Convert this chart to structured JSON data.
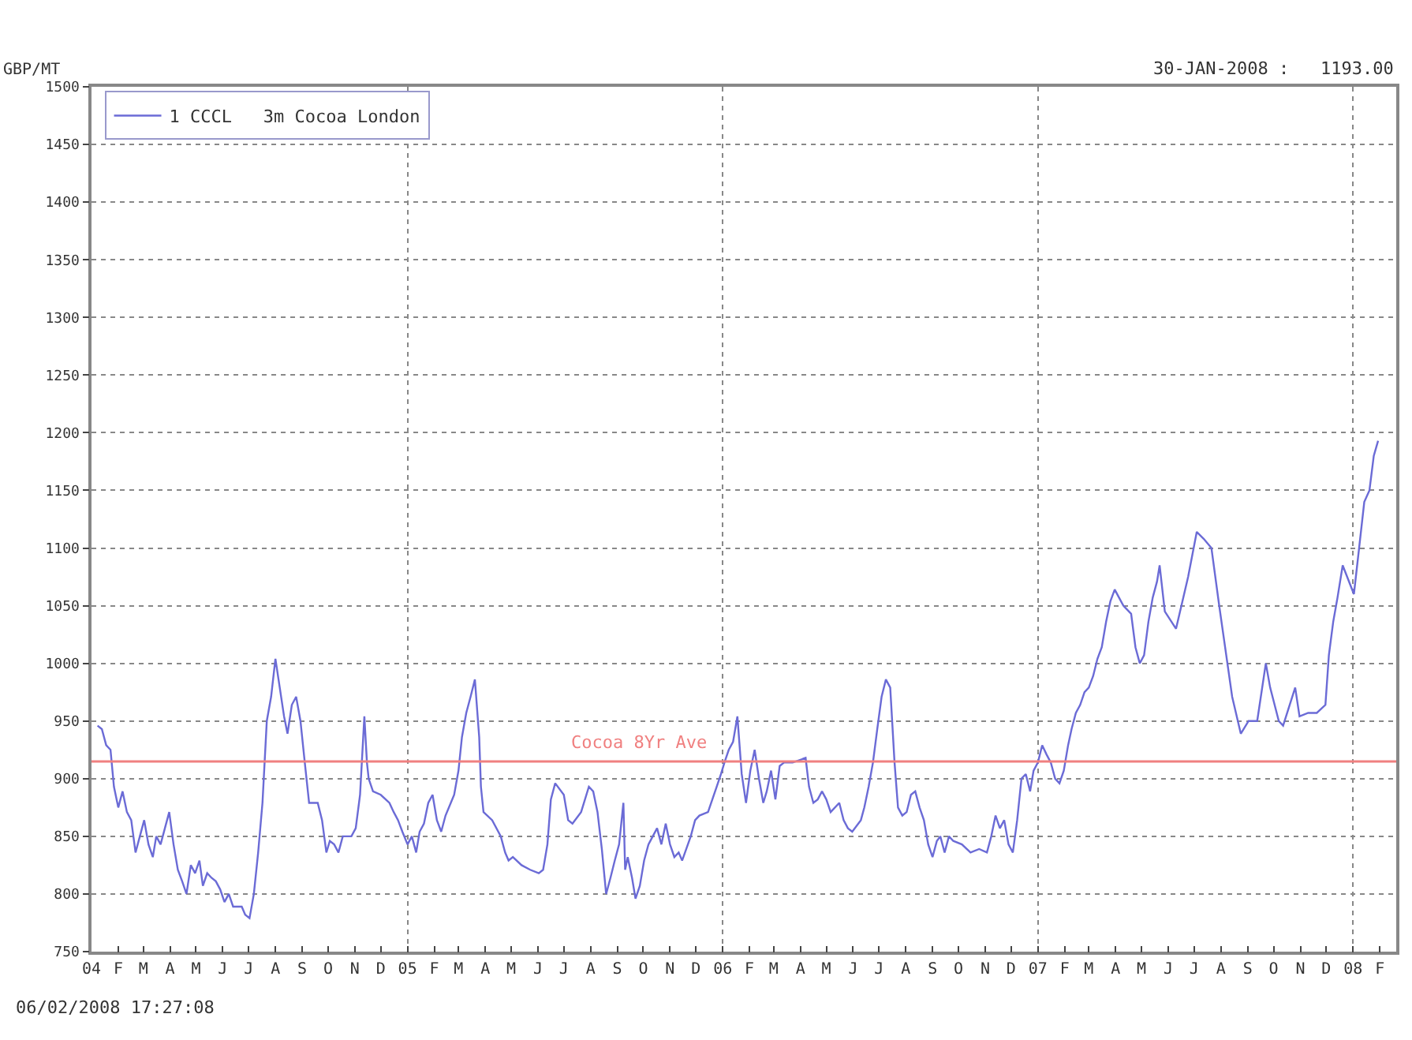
{
  "chart_data": {
    "type": "line",
    "ylabel": "GBP/MT",
    "annotations": [
      "30-JAN-2008 :   1193.00",
      "06/02/2008 17:27:08"
    ],
    "series": [
      {
        "name": "1 CCCL   3m Cocoa London",
        "color": "#6b6bd6",
        "x": [
          "2004-01-08",
          "2004-01-13",
          "2004-01-18",
          "2004-01-23",
          "2004-01-27",
          "2004-02-01",
          "2004-02-06",
          "2004-02-11",
          "2004-02-16",
          "2004-02-21",
          "2004-02-26",
          "2004-03-02",
          "2004-03-07",
          "2004-03-12",
          "2004-03-16",
          "2004-03-21",
          "2004-03-26",
          "2004-03-31",
          "2004-04-05",
          "2004-04-10",
          "2004-04-15",
          "2004-04-20",
          "2004-04-25",
          "2004-04-30",
          "2004-05-05",
          "2004-05-09",
          "2004-05-14",
          "2004-05-19",
          "2004-05-24",
          "2004-05-29",
          "2004-06-03",
          "2004-06-08",
          "2004-06-13",
          "2004-06-23",
          "2004-06-27",
          "2004-07-02",
          "2004-07-07",
          "2004-07-12",
          "2004-07-17",
          "2004-07-22",
          "2004-07-27",
          "2004-08-01",
          "2004-08-06",
          "2004-08-11",
          "2004-08-15",
          "2004-08-20",
          "2004-08-25",
          "2004-08-30",
          "2004-09-04",
          "2004-09-09",
          "2004-09-19",
          "2004-09-24",
          "2004-09-29",
          "2004-10-03",
          "2004-10-08",
          "2004-10-13",
          "2004-10-18",
          "2004-10-28",
          "2004-11-02",
          "2004-11-07",
          "2004-11-12",
          "2004-11-15",
          "2004-11-17",
          "2004-11-22",
          "2004-12-01",
          "2004-12-11",
          "2004-12-16",
          "2004-12-21",
          "2004-12-26",
          "2005-01-01",
          "2005-01-06",
          "2005-01-11",
          "2005-01-15",
          "2005-01-20",
          "2005-01-25",
          "2005-01-30",
          "2005-02-04",
          "2005-02-09",
          "2005-02-14",
          "2005-02-24",
          "2005-03-01",
          "2005-03-05",
          "2005-03-10",
          "2005-03-15",
          "2005-03-20",
          "2005-03-25",
          "2005-03-27",
          "2005-03-30",
          "2005-04-09",
          "2005-04-19",
          "2005-04-24",
          "2005-04-28",
          "2005-05-03",
          "2005-05-13",
          "2005-05-23",
          "2005-06-02",
          "2005-06-07",
          "2005-06-12",
          "2005-06-16",
          "2005-06-21",
          "2005-07-01",
          "2005-07-06",
          "2005-07-11",
          "2005-07-21",
          "2005-07-30",
          "2005-08-04",
          "2005-08-09",
          "2005-08-14",
          "2005-08-19",
          "2005-08-24",
          "2005-08-29",
          "2005-09-03",
          "2005-09-08",
          "2005-09-10",
          "2005-09-13",
          "2005-09-18",
          "2005-09-22",
          "2005-09-27",
          "2005-10-02",
          "2005-10-07",
          "2005-10-12",
          "2005-10-17",
          "2005-10-22",
          "2005-10-27",
          "2005-11-01",
          "2005-11-06",
          "2005-11-11",
          "2005-11-15",
          "2005-11-25",
          "2005-11-30",
          "2005-12-05",
          "2005-12-15",
          "2005-12-20",
          "2005-12-25",
          "2005-12-30",
          "2006-01-03",
          "2006-01-08",
          "2006-01-13",
          "2006-01-18",
          "2006-01-23",
          "2006-01-28",
          "2006-02-02",
          "2006-02-07",
          "2006-02-12",
          "2006-02-17",
          "2006-02-21",
          "2006-02-26",
          "2006-03-03",
          "2006-03-08",
          "2006-03-13",
          "2006-03-23",
          "2006-04-07",
          "2006-04-11",
          "2006-04-16",
          "2006-04-21",
          "2006-04-26",
          "2006-05-01",
          "2006-05-06",
          "2006-05-16",
          "2006-05-21",
          "2006-05-26",
          "2006-05-31",
          "2006-06-10",
          "2006-06-14",
          "2006-06-19",
          "2006-06-24",
          "2006-06-29",
          "2006-07-04",
          "2006-07-09",
          "2006-07-14",
          "2006-07-19",
          "2006-07-23",
          "2006-07-28",
          "2006-08-02",
          "2006-08-07",
          "2006-08-12",
          "2006-08-17",
          "2006-08-22",
          "2006-08-27",
          "2006-09-01",
          "2006-09-06",
          "2006-09-10",
          "2006-09-15",
          "2006-09-20",
          "2006-09-25",
          "2006-10-05",
          "2006-10-15",
          "2006-10-25",
          "2006-11-03",
          "2006-11-08",
          "2006-11-13",
          "2006-11-18",
          "2006-11-23",
          "2006-11-28",
          "2006-12-03",
          "2006-12-08",
          "2006-12-13",
          "2006-12-18",
          "2006-12-23",
          "2006-12-27",
          "2007-01-01",
          "2007-01-06",
          "2007-01-11",
          "2007-01-16",
          "2007-01-21",
          "2007-01-26",
          "2007-01-31",
          "2007-02-05",
          "2007-02-09",
          "2007-02-14",
          "2007-02-19",
          "2007-02-24",
          "2007-03-01",
          "2007-03-06",
          "2007-03-11",
          "2007-03-16",
          "2007-03-21",
          "2007-03-26",
          "2007-03-31",
          "2007-04-05",
          "2007-04-10",
          "2007-04-19",
          "2007-04-24",
          "2007-04-29",
          "2007-05-04",
          "2007-05-09",
          "2007-05-14",
          "2007-05-19",
          "2007-05-22",
          "2007-05-28",
          "2007-06-10",
          "2007-06-24",
          "2007-07-04",
          "2007-07-12",
          "2007-07-21",
          "2007-07-30",
          "2007-08-14",
          "2007-08-24",
          "2007-09-02",
          "2007-09-12",
          "2007-09-22",
          "2007-09-27",
          "2007-10-07",
          "2007-10-12",
          "2007-10-26",
          "2007-10-31",
          "2007-11-10",
          "2007-11-20",
          "2007-11-30",
          "2007-12-04",
          "2007-12-09",
          "2007-12-14",
          "2007-12-20",
          "2008-01-02",
          "2008-01-08",
          "2008-01-14",
          "2008-01-20",
          "2008-01-25",
          "2008-01-30"
        ],
        "values": [
          946,
          943,
          929,
          925,
          893,
          875,
          889,
          871,
          864,
          836,
          850,
          864,
          843,
          832,
          850,
          843,
          857,
          871,
          843,
          821,
          811,
          800,
          825,
          818,
          829,
          807,
          818,
          814,
          811,
          804,
          793,
          800,
          789,
          789,
          782,
          779,
          800,
          836,
          879,
          950,
          971,
          1004,
          979,
          954,
          939,
          964,
          971,
          950,
          914,
          879,
          879,
          864,
          836,
          846,
          843,
          836,
          850,
          850,
          857,
          886,
          954,
          914,
          900,
          889,
          886,
          879,
          871,
          864,
          854,
          843,
          850,
          836,
          854,
          861,
          879,
          886,
          864,
          854,
          868,
          886,
          907,
          936,
          957,
          971,
          986,
          936,
          893,
          871,
          864,
          850,
          836,
          829,
          832,
          825,
          821,
          818,
          821,
          843,
          882,
          896,
          886,
          864,
          861,
          871,
          893,
          889,
          871,
          839,
          800,
          814,
          829,
          843,
          879,
          821,
          832,
          814,
          796,
          807,
          829,
          843,
          850,
          857,
          843,
          861,
          843,
          832,
          836,
          829,
          850,
          864,
          868,
          871,
          882,
          893,
          904,
          914,
          925,
          932,
          954,
          904,
          879,
          907,
          925,
          900,
          879,
          889,
          907,
          882,
          911,
          914,
          914,
          918,
          893,
          879,
          882,
          889,
          882,
          871,
          879,
          864,
          857,
          854,
          864,
          875,
          893,
          914,
          943,
          971,
          986,
          979,
          914,
          875,
          868,
          871,
          886,
          889,
          875,
          864,
          843,
          832,
          846,
          850,
          836,
          850,
          846,
          843,
          836,
          839,
          836,
          850,
          868,
          857,
          864,
          843,
          836,
          864,
          900,
          904,
          889,
          907,
          914,
          929,
          921,
          914,
          900,
          896,
          907,
          929,
          943,
          957,
          964,
          975,
          979,
          989,
          1004,
          1014,
          1036,
          1054,
          1064,
          1057,
          1050,
          1043,
          1014,
          1000,
          1007,
          1036,
          1057,
          1071,
          1085,
          1045,
          1030,
          1075,
          1114,
          1108,
          1100,
          1050,
          971,
          939,
          950,
          950,
          1000,
          979,
          950,
          946,
          979,
          954,
          957,
          957,
          964,
          1007,
          1036,
          1057,
          1085,
          1060,
          1100,
          1140,
          1150,
          1180,
          1193
        ]
      }
    ],
    "ylim": [
      750,
      1500
    ],
    "yticks": [
      750,
      800,
      850,
      900,
      950,
      1000,
      1050,
      1100,
      1150,
      1200,
      1250,
      1300,
      1350,
      1400,
      1450,
      1500
    ],
    "xlim": [
      "2004-01-01",
      "2008-02-20"
    ],
    "xticks": [
      {
        "value": "2004-01-01",
        "label": "04"
      },
      {
        "value": "2004-02-01",
        "label": "F"
      },
      {
        "value": "2004-03-01",
        "label": "M"
      },
      {
        "value": "2004-04-01",
        "label": "A"
      },
      {
        "value": "2004-05-01",
        "label": "M"
      },
      {
        "value": "2004-06-01",
        "label": "J"
      },
      {
        "value": "2004-07-01",
        "label": "J"
      },
      {
        "value": "2004-08-01",
        "label": "A"
      },
      {
        "value": "2004-09-01",
        "label": "S"
      },
      {
        "value": "2004-10-01",
        "label": "O"
      },
      {
        "value": "2004-11-01",
        "label": "N"
      },
      {
        "value": "2004-12-01",
        "label": "D"
      },
      {
        "value": "2005-01-01",
        "label": "05"
      },
      {
        "value": "2005-02-01",
        "label": "F"
      },
      {
        "value": "2005-03-01",
        "label": "M"
      },
      {
        "value": "2005-04-01",
        "label": "A"
      },
      {
        "value": "2005-05-01",
        "label": "M"
      },
      {
        "value": "2005-06-01",
        "label": "J"
      },
      {
        "value": "2005-07-01",
        "label": "J"
      },
      {
        "value": "2005-08-01",
        "label": "A"
      },
      {
        "value": "2005-09-01",
        "label": "S"
      },
      {
        "value": "2005-10-01",
        "label": "O"
      },
      {
        "value": "2005-11-01",
        "label": "N"
      },
      {
        "value": "2005-12-01",
        "label": "D"
      },
      {
        "value": "2006-01-01",
        "label": "06"
      },
      {
        "value": "2006-02-01",
        "label": "F"
      },
      {
        "value": "2006-03-01",
        "label": "M"
      },
      {
        "value": "2006-04-01",
        "label": "A"
      },
      {
        "value": "2006-05-01",
        "label": "M"
      },
      {
        "value": "2006-06-01",
        "label": "J"
      },
      {
        "value": "2006-07-01",
        "label": "J"
      },
      {
        "value": "2006-08-01",
        "label": "A"
      },
      {
        "value": "2006-09-01",
        "label": "S"
      },
      {
        "value": "2006-10-01",
        "label": "O"
      },
      {
        "value": "2006-11-01",
        "label": "N"
      },
      {
        "value": "2006-12-01",
        "label": "D"
      },
      {
        "value": "2007-01-01",
        "label": "07"
      },
      {
        "value": "2007-02-01",
        "label": "F"
      },
      {
        "value": "2007-03-01",
        "label": "M"
      },
      {
        "value": "2007-04-01",
        "label": "A"
      },
      {
        "value": "2007-05-01",
        "label": "M"
      },
      {
        "value": "2007-06-01",
        "label": "J"
      },
      {
        "value": "2007-07-01",
        "label": "J"
      },
      {
        "value": "2007-08-01",
        "label": "A"
      },
      {
        "value": "2007-09-01",
        "label": "S"
      },
      {
        "value": "2007-10-01",
        "label": "O"
      },
      {
        "value": "2007-11-01",
        "label": "N"
      },
      {
        "value": "2007-12-01",
        "label": "D"
      },
      {
        "value": "2008-01-01",
        "label": "08"
      },
      {
        "value": "2008-02-01",
        "label": "F"
      }
    ],
    "ref_lines": [
      {
        "axis": "y",
        "value": 915,
        "label": "Cocoa 8Yr Ave",
        "color": "#f08080"
      }
    ],
    "grid": true,
    "legend": "top left",
    "marker": "none",
    "line_style": "solid"
  }
}
